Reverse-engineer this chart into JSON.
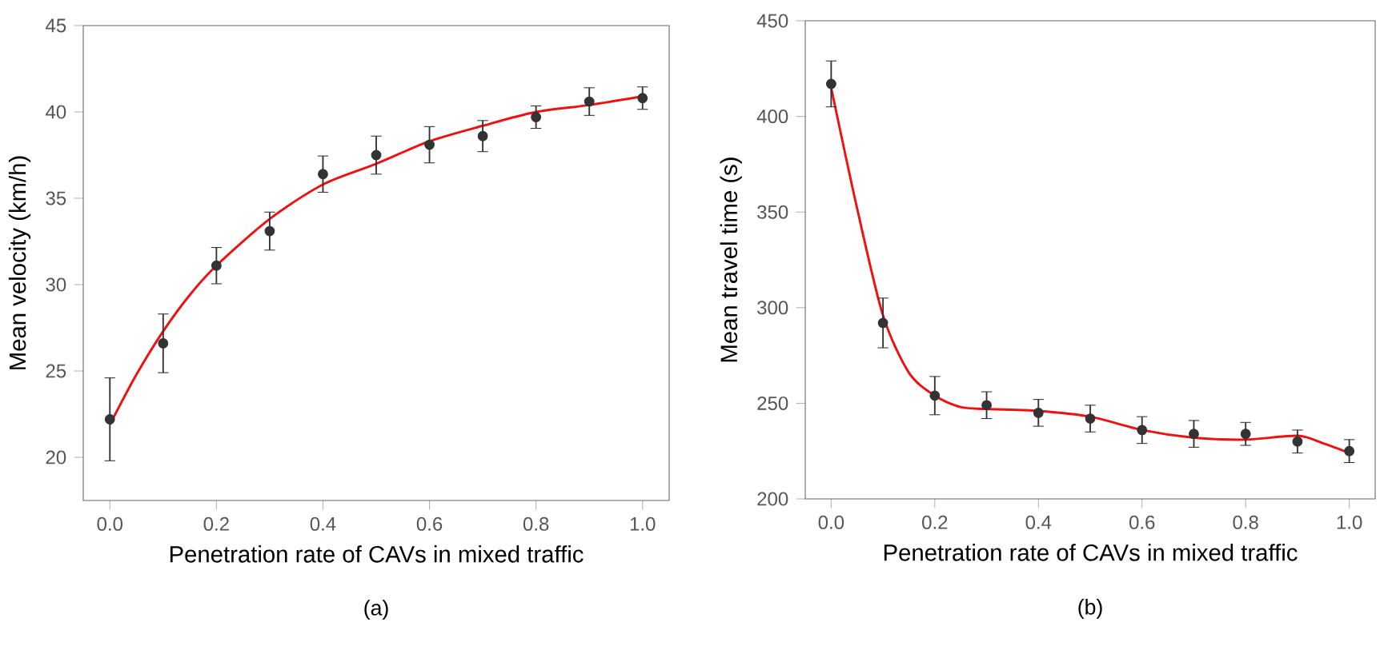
{
  "chart_data": [
    {
      "type": "scatter",
      "xlabel": "Penetration rate of CAVs in mixed traffic",
      "ylabel": "Mean velocity (km/h)",
      "annotations": [
        "(a)"
      ],
      "xlim": [
        -0.05,
        1.05
      ],
      "ylim": [
        17.5,
        45
      ],
      "xticks": [
        {
          "value": 0,
          "label": "0.0"
        },
        {
          "value": 0.2,
          "label": "0.2"
        },
        {
          "value": 0.4,
          "label": "0.4"
        },
        {
          "value": 0.6,
          "label": "0.6"
        },
        {
          "value": 0.8,
          "label": "0.8"
        },
        {
          "value": 1,
          "label": "1.0"
        }
      ],
      "yticks": [
        20,
        25,
        30,
        35,
        40,
        45
      ],
      "series": [
        {
          "type": "line",
          "color": "#ee1111",
          "x": [
            0,
            0.05,
            0.1,
            0.15,
            0.2,
            0.3,
            0.4,
            0.5,
            0.6,
            0.7,
            0.8,
            0.9,
            1.0
          ],
          "values": [
            21.9,
            24.8,
            27.3,
            29.4,
            31.1,
            33.8,
            35.8,
            37.0,
            38.3,
            39.2,
            40.0,
            40.4,
            40.9
          ]
        },
        {
          "color": "#333333",
          "marker": "circle",
          "x": [
            0,
            0.1,
            0.2,
            0.3,
            0.4,
            0.5,
            0.6,
            0.7,
            0.8,
            0.9,
            1.0
          ],
          "values": [
            22.2,
            26.6,
            31.1,
            33.1,
            36.4,
            37.5,
            38.1,
            38.6,
            39.7,
            40.6,
            40.8
          ],
          "errors": [
            2.4,
            1.7,
            1.05,
            1.1,
            1.05,
            1.1,
            1.05,
            0.9,
            0.65,
            0.8,
            0.65
          ]
        }
      ]
    },
    {
      "type": "scatter",
      "xlabel": "Penetration rate of CAVs in mixed traffic",
      "ylabel": "Mean travel time (s)",
      "annotations": [
        "(b)"
      ],
      "xlim": [
        -0.05,
        1.05
      ],
      "ylim": [
        200,
        450
      ],
      "xticks": [
        {
          "value": 0,
          "label": "0.0"
        },
        {
          "value": 0.2,
          "label": "0.2"
        },
        {
          "value": 0.4,
          "label": "0.4"
        },
        {
          "value": 0.6,
          "label": "0.6"
        },
        {
          "value": 0.8,
          "label": "0.8"
        },
        {
          "value": 1,
          "label": "1.0"
        }
      ],
      "yticks": [
        200,
        250,
        300,
        350,
        400,
        450
      ],
      "series": [
        {
          "type": "line",
          "color": "#ee1111",
          "x": [
            0,
            0.05,
            0.1,
            0.15,
            0.2,
            0.25,
            0.3,
            0.4,
            0.5,
            0.6,
            0.7,
            0.8,
            0.9,
            0.95,
            1.0
          ],
          "values": [
            415,
            352,
            296,
            266,
            254,
            248,
            247,
            246,
            243,
            236,
            232,
            231,
            233,
            229,
            224
          ]
        },
        {
          "color": "#333333",
          "marker": "circle",
          "x": [
            0,
            0.1,
            0.2,
            0.3,
            0.4,
            0.5,
            0.6,
            0.7,
            0.8,
            0.9,
            1.0
          ],
          "values": [
            417,
            292,
            254,
            249,
            245,
            242,
            236,
            234,
            234,
            230,
            225
          ],
          "errors": [
            12,
            13,
            10,
            7,
            7,
            7,
            7,
            7,
            6,
            6,
            6
          ]
        }
      ]
    }
  ]
}
